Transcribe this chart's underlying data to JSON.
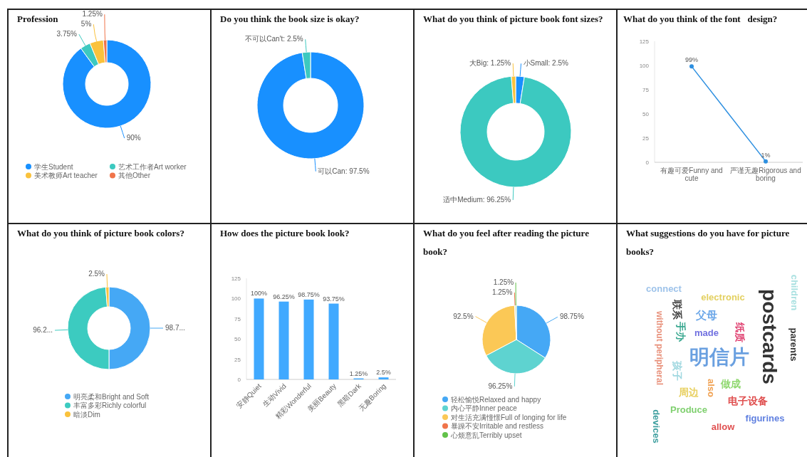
{
  "chart_data": [
    {
      "type": "donut",
      "title": "Profession",
      "categories": [
        "学生Student",
        "艺术工作者Art worker",
        "美术教师Art teacher",
        "其他Other"
      ],
      "values": [
        90,
        3.75,
        5,
        1.25
      ],
      "colors": [
        "#1890ff",
        "#3cc9c0",
        "#fac23c",
        "#f0744a"
      ],
      "value_labels": [
        "90%",
        "3.75%",
        "5%",
        "1.25%"
      ],
      "legend": "bottom"
    },
    {
      "type": "donut",
      "title": "Do you think the book size is okay?",
      "values": [
        97.5,
        2.5
      ],
      "colors": [
        "#1890ff",
        "#3cc9c0"
      ],
      "value_labels": [
        "可以Can: 97.5%",
        "不可以Can't: 2.5%"
      ]
    },
    {
      "type": "donut",
      "title": "What do you think of picture book font sizes?",
      "values": [
        2.5,
        96.25,
        1.25
      ],
      "colors": [
        "#1890ff",
        "#3cc9c0",
        "#fac23c"
      ],
      "value_labels": [
        "小Small: 2.5%",
        "适中Medium: 96.25%",
        "大Big: 1.25%"
      ]
    },
    {
      "type": "line",
      "title": "What do you think of the font   design?",
      "categories": [
        "有趣可爱Funny and cute",
        "严谨无趣Rigorous and boring"
      ],
      "values": [
        99,
        1
      ],
      "color": "#2d8fe0",
      "ylim": [
        0,
        125
      ],
      "yticks": [
        0,
        25,
        50,
        75,
        100,
        125
      ],
      "marker": "circle",
      "value_labels": [
        "99%",
        "1%"
      ]
    },
    {
      "type": "donut",
      "title": "What do you think of picture book colors?",
      "categories": [
        "明亮柔和Bright and Soft",
        "丰富多彩Richly colorful",
        "暗淡Dim"
      ],
      "values": [
        98.75,
        96.25,
        2.5
      ],
      "colors": [
        "#45a8f5",
        "#3ccbc0",
        "#fac23c"
      ],
      "value_labels": [
        "98.7...",
        "96.2...",
        "2.5%"
      ],
      "legend": "bottom"
    },
    {
      "type": "bar",
      "title": "How does the picture book look?",
      "categories": [
        "安静Quiet",
        "生动Vivid",
        "精彩Wonderful",
        "美丽Beauty",
        "黑暗Dark",
        "无趣Boring"
      ],
      "values": [
        100,
        96.25,
        98.75,
        93.75,
        1.25,
        2.5
      ],
      "color": "#40a9ff",
      "ylim": [
        0,
        125
      ],
      "yticks": [
        0,
        25,
        50,
        75,
        100,
        125
      ],
      "value_labels": [
        "100%",
        "96.25%",
        "98.75%",
        "93.75%",
        "1.25%",
        "2.5%"
      ]
    },
    {
      "type": "pie",
      "title": "What do you feel after reading the picture book?",
      "categories": [
        "轻松愉悦Relaxed and happy",
        "内心平静Inner peace",
        "对生活充满憧憬Full of longing for life",
        "暴躁不安Irritable and restless",
        "心烦意乱Terribly upset"
      ],
      "values": [
        98.75,
        96.25,
        92.5,
        1.25,
        1.25
      ],
      "colors": [
        "#45a8f5",
        "#5ed3d0",
        "#fbc856",
        "#f0744a",
        "#62c24a"
      ],
      "value_labels": [
        "98.75%",
        "96.25%",
        "92.5%",
        "1.25%",
        "1.25%"
      ],
      "legend": "bottom"
    },
    {
      "type": "other",
      "title": "What suggestions do you have for picture books?",
      "annotations": [
        "connect",
        "electronic",
        "postcards",
        "children",
        "parents",
        "without peripheral",
        "联系",
        "父母",
        "手办",
        "made",
        "纸质",
        "明信片",
        "孩子",
        "also",
        "做成",
        "周边",
        "电子设备",
        "Produce",
        "devices",
        "figurines",
        "allow"
      ]
    }
  ]
}
